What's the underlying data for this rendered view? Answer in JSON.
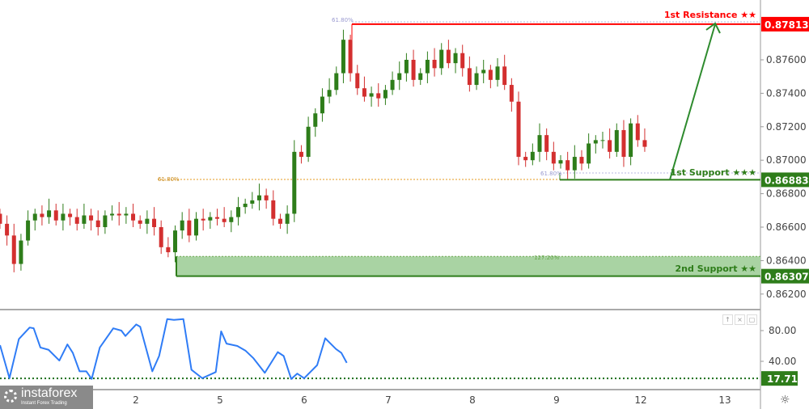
{
  "chart_data": {
    "type": "candlestick",
    "price_axis": {
      "ticks": [
        0.862,
        0.864,
        0.866,
        0.868,
        0.87,
        0.872,
        0.874,
        0.876
      ],
      "range": [
        0.8605,
        0.8795
      ]
    },
    "time_axis": {
      "tick_labels": [
        "2",
        "5",
        "6",
        "7",
        "8",
        "9",
        "12",
        "13"
      ],
      "tick_positions_days": [
        1,
        2,
        3,
        4,
        5,
        6,
        7,
        8
      ]
    },
    "candles": {
      "start_day": -0.616,
      "step_days": 0.0833,
      "first_open": 0.8668,
      "closes": [
        0.8662,
        0.8655,
        0.8638,
        0.8652,
        0.8664,
        0.8668,
        0.8666,
        0.867,
        0.8664,
        0.8668,
        0.8666,
        0.8662,
        0.8667,
        0.8664,
        0.866,
        0.8667,
        0.8668,
        0.8667,
        0.8668,
        0.8664,
        0.8662,
        0.8665,
        0.866,
        0.8648,
        0.8645,
        0.8658,
        0.8664,
        0.8655,
        0.8665,
        0.8664,
        0.8666,
        0.8665,
        0.8663,
        0.8666,
        0.8672,
        0.8674,
        0.8676,
        0.8679,
        0.8676,
        0.8665,
        0.8662,
        0.8668,
        0.8705,
        0.8702,
        0.872,
        0.8728,
        0.8738,
        0.8742,
        0.8752,
        0.8772,
        0.8752,
        0.8743,
        0.8738,
        0.874,
        0.8737,
        0.8742,
        0.8748,
        0.8752,
        0.876,
        0.8748,
        0.8752,
        0.876,
        0.8755,
        0.8766,
        0.8758,
        0.8764,
        0.8755,
        0.8745,
        0.8752,
        0.8754,
        0.8748,
        0.8756,
        0.8745,
        0.8735,
        0.8702,
        0.87,
        0.8705,
        0.8715,
        0.8705,
        0.8698,
        0.87,
        0.8694,
        0.8702,
        0.8698,
        0.871,
        0.8712,
        0.8712,
        0.8705,
        0.8718,
        0.8702,
        0.8722,
        0.8712,
        0.8708
      ]
    },
    "levels": [
      {
        "name": "1st Resistance ★★",
        "value": "0.87813",
        "price": 0.87813,
        "color": "#ff0000"
      },
      {
        "name": "1st Support ★★★",
        "value": "0.86883",
        "price": 0.86883,
        "color": "#2e7d1a"
      },
      {
        "name": "2nd Support ★★",
        "value": "0.86307",
        "price": 0.86307,
        "color": "#2e7d1a",
        "zone_top": 0.86425
      }
    ],
    "fib_labels": [
      {
        "text": "61.80%",
        "price": 0.8782
      },
      {
        "text": "61.80%",
        "price": 0.8688
      },
      {
        "text": "61.80%",
        "price": 0.8692
      },
      {
        "text": "127.20%",
        "price": 0.8643
      }
    ],
    "oscillator": {
      "ticks": [
        "80.00",
        "40.00"
      ],
      "tick_values": [
        80,
        40
      ],
      "level": "17.71",
      "level_value": 17.71,
      "x_days": [
        -0.615,
        -0.503,
        -0.391,
        -0.263,
        -0.215,
        -0.135,
        -0.038,
        0.09,
        0.186,
        0.25,
        0.33,
        0.41,
        0.474,
        0.571,
        0.731,
        0.827,
        0.875,
        1.003,
        1.051,
        1.195,
        1.276,
        1.372,
        1.452,
        1.564,
        1.66,
        1.788,
        1.788,
        1.949,
        2.013,
        2.077,
        2.205,
        2.301,
        2.397,
        2.532,
        2.686,
        2.756,
        2.846,
        2.917,
        3.0,
        3.154,
        3.25,
        3.378,
        3.442,
        3.506
      ],
      "values": [
        61,
        18,
        69,
        84,
        83,
        58,
        55,
        41,
        62,
        51,
        27,
        27,
        17,
        58,
        83,
        80,
        73,
        88,
        85,
        27,
        47,
        95,
        94,
        95,
        29,
        18,
        18,
        26,
        79,
        63,
        60,
        54,
        44,
        25,
        52,
        47,
        17,
        24,
        18,
        35,
        70,
        56,
        51,
        38
      ]
    }
  },
  "logo": {
    "name": "instaforex",
    "tagline": "Instant Forex Trading"
  },
  "controls": {
    "up": "↑",
    "close": "×",
    "max": "▢",
    "settings": "☼"
  }
}
